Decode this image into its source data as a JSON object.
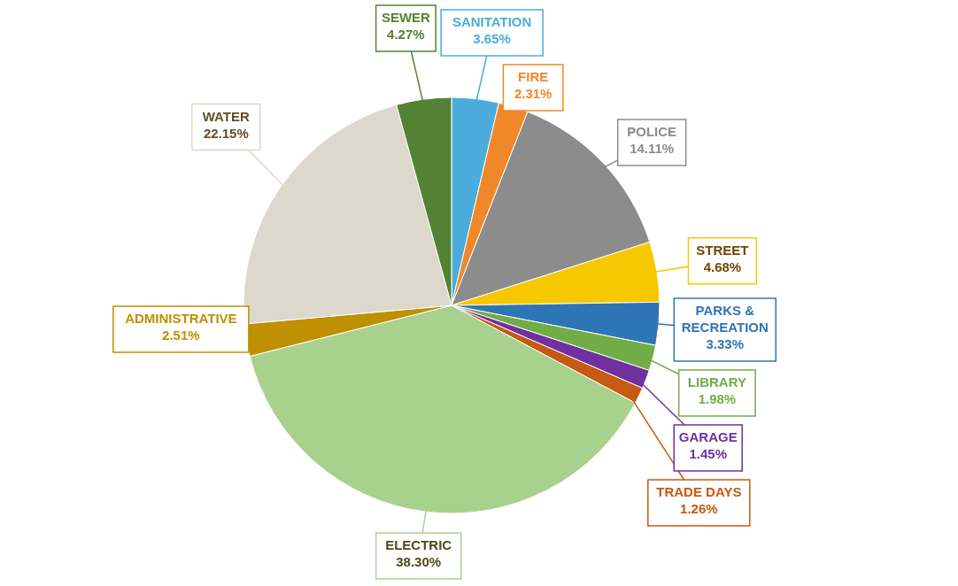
{
  "chart_data": {
    "type": "pie",
    "categories": [
      "SANITATION",
      "FIRE",
      "POLICE",
      "STREET",
      "PARKS & RECREATION",
      "LIBRARY",
      "GARAGE",
      "TRADE DAYS",
      "ELECTRIC",
      "ADMINISTRATIVE",
      "WATER",
      "SEWER"
    ],
    "values": [
      3.65,
      2.31,
      14.11,
      4.68,
      3.33,
      1.98,
      1.45,
      1.26,
      38.3,
      2.51,
      22.15,
      4.27
    ],
    "colors": [
      "#4bacdc",
      "#f0882a",
      "#8c8c8c",
      "#f5c800",
      "#2e75b6",
      "#70ad47",
      "#7030a0",
      "#c55a11",
      "#a9d18e",
      "#bf9000",
      "#ddd8cc",
      "#548235"
    ],
    "value_labels": [
      "3.65%",
      "2.31%",
      "14.11%",
      "4.68%",
      "3.33%",
      "1.98%",
      "1.45%",
      "1.26%",
      "38.30%",
      "2.51%",
      "22.15%",
      "4.27%"
    ]
  }
}
